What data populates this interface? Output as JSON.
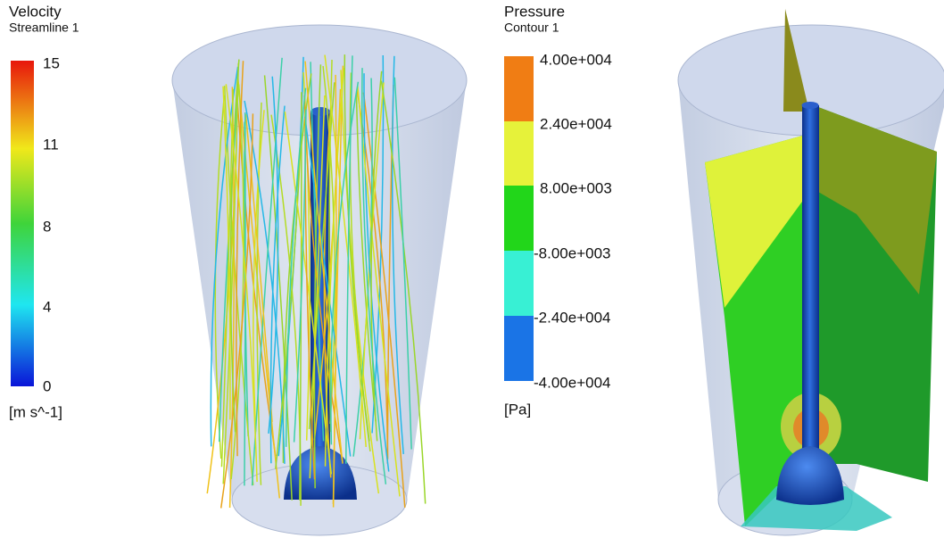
{
  "velocity_legend": {
    "title": "Velocity",
    "subtitle": "Streamline 1",
    "ticks": [
      "15",
      "11",
      "8",
      "4",
      "0"
    ],
    "unit": "[m s^-1]"
  },
  "pressure_legend": {
    "title": "Pressure",
    "subtitle": "Contour 1",
    "ticks": [
      "4.00e+004",
      "2.40e+004",
      "8.00e+003",
      "-8.00e+003",
      "-2.40e+004",
      "-4.00e+004"
    ],
    "unit": "[Pa]"
  }
}
